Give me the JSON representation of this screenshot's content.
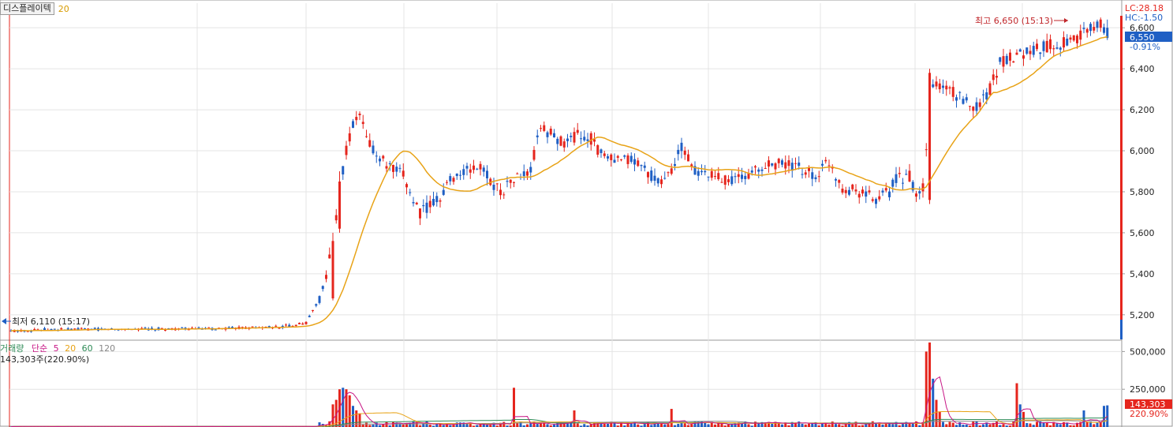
{
  "toolbar": {
    "name": "디스플레이텍",
    "period": "20"
  },
  "price_panel": {
    "lc_label": "LC:28.18",
    "hc_label": "HC:-1.50",
    "current_price": "6,550",
    "change_pct": "-0.91%",
    "high_annotation": "최고 6,650 (15:13)",
    "low_annotation": "최저 6,110 (15:17)",
    "y_ticks": [
      "6,600",
      "6,400",
      "6,200",
      "6,000",
      "5,800",
      "5,600",
      "5,400",
      "5,200"
    ]
  },
  "volume_panel": {
    "legend": {
      "label": "거래량",
      "ma_label": "단순",
      "ma_periods": [
        "5",
        "20",
        "60",
        "120"
      ]
    },
    "current_volume_text": "143,303주(220.90%)",
    "current_volume": "143,303",
    "current_pct": "220.90%",
    "y_ticks": [
      "500,000",
      "250,000"
    ]
  },
  "colors": {
    "up": "#e5251d",
    "down": "#1f5fc4",
    "ma20": "#e8a317",
    "grid": "#e4e4e4",
    "ma5": "#c71585",
    "ma60": "#2e8b57",
    "ma120": "#888888"
  },
  "chart_data": {
    "type": "candlestick",
    "y_range": [
      5080,
      6720
    ],
    "volume_range": [
      0,
      570000
    ],
    "anchors": [
      [
        0,
        5120
      ],
      [
        5,
        5125
      ],
      [
        10,
        5128
      ],
      [
        30,
        5130
      ],
      [
        60,
        5132
      ],
      [
        80,
        5140
      ],
      [
        88,
        5160
      ],
      [
        92,
        5280
      ],
      [
        94,
        5380
      ],
      [
        96,
        5560
      ],
      [
        98,
        5820
      ],
      [
        100,
        6000
      ],
      [
        102,
        6120
      ],
      [
        104,
        6180
      ],
      [
        106,
        6060
      ],
      [
        110,
        5960
      ],
      [
        114,
        5900
      ],
      [
        117,
        5880
      ],
      [
        120,
        5760
      ],
      [
        122,
        5700
      ],
      [
        124,
        5720
      ],
      [
        128,
        5780
      ],
      [
        132,
        5880
      ],
      [
        136,
        5900
      ],
      [
        140,
        5920
      ],
      [
        144,
        5840
      ],
      [
        146,
        5800
      ],
      [
        150,
        5860
      ],
      [
        155,
        5900
      ],
      [
        158,
        6120
      ],
      [
        161,
        6080
      ],
      [
        165,
        6040
      ],
      [
        170,
        6080
      ],
      [
        173,
        6060
      ],
      [
        176,
        5980
      ],
      [
        180,
        5940
      ],
      [
        185,
        5960
      ],
      [
        190,
        5900
      ],
      [
        193,
        5840
      ],
      [
        197,
        5900
      ],
      [
        200,
        6020
      ],
      [
        204,
        5900
      ],
      [
        210,
        5870
      ],
      [
        216,
        5860
      ],
      [
        222,
        5900
      ],
      [
        228,
        5940
      ],
      [
        234,
        5920
      ],
      [
        240,
        5880
      ],
      [
        244,
        5950
      ],
      [
        248,
        5820
      ],
      [
        254,
        5800
      ],
      [
        258,
        5760
      ],
      [
        262,
        5800
      ],
      [
        264,
        5860
      ],
      [
        268,
        5880
      ],
      [
        270,
        5760
      ],
      [
        272,
        5820
      ],
      [
        275,
        6320
      ],
      [
        280,
        6300
      ],
      [
        284,
        6240
      ],
      [
        288,
        6220
      ],
      [
        292,
        6300
      ],
      [
        295,
        6430
      ],
      [
        300,
        6470
      ],
      [
        306,
        6500
      ],
      [
        312,
        6520
      ],
      [
        318,
        6540
      ],
      [
        322,
        6600
      ],
      [
        325,
        6620
      ],
      [
        327,
        6550
      ]
    ],
    "vol_peaks": [
      [
        96,
        150000
      ],
      [
        97,
        180000
      ],
      [
        98,
        250000
      ],
      [
        99,
        260000
      ],
      [
        100,
        250000
      ],
      [
        101,
        210000
      ],
      [
        102,
        140000
      ],
      [
        103,
        110000
      ],
      [
        104,
        90000
      ],
      [
        150,
        260000
      ],
      [
        168,
        110000
      ],
      [
        197,
        120000
      ],
      [
        273,
        500000
      ],
      [
        274,
        560000
      ],
      [
        275,
        320000
      ],
      [
        276,
        180000
      ],
      [
        277,
        100000
      ],
      [
        300,
        290000
      ],
      [
        301,
        150000
      ],
      [
        302,
        100000
      ],
      [
        320,
        110000
      ],
      [
        326,
        140000
      ],
      [
        327,
        143303
      ]
    ]
  }
}
